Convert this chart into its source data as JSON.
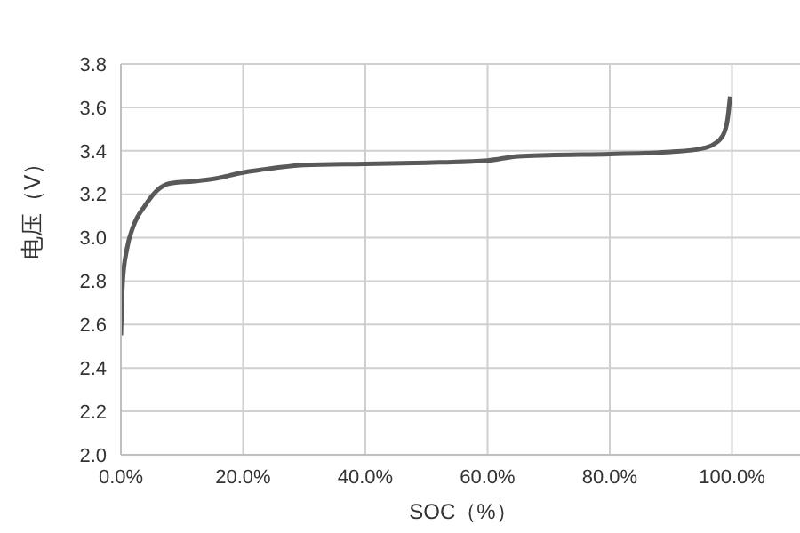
{
  "chart_data": {
    "type": "line",
    "xlabel": "SOC（%）",
    "ylabel": "电压（V）",
    "x": [
      0,
      0.3,
      1,
      2,
      4,
      6,
      8,
      12,
      15,
      20,
      25,
      30,
      40,
      50,
      60,
      65,
      70,
      80,
      90,
      95,
      97,
      98.5,
      99.3,
      99.7
    ],
    "series": [
      {
        "color": "#595959",
        "values": [
          2.55,
          2.8,
          2.95,
          3.05,
          3.15,
          3.22,
          3.25,
          3.26,
          3.27,
          3.3,
          3.32,
          3.335,
          3.34,
          3.345,
          3.355,
          3.375,
          3.38,
          3.385,
          3.395,
          3.41,
          3.43,
          3.47,
          3.55,
          3.65
        ]
      }
    ],
    "xlim": [
      0,
      112
    ],
    "xticks": [
      {
        "value": 0,
        "label": "0.0%"
      },
      {
        "value": 20,
        "label": "20.0%"
      },
      {
        "value": 40,
        "label": "40.0%"
      },
      {
        "value": 60,
        "label": "60.0%"
      },
      {
        "value": 80,
        "label": "80.0%"
      },
      {
        "value": 100,
        "label": "100.0%"
      }
    ],
    "ylim": [
      2.0,
      3.8
    ],
    "yticks": [
      {
        "value": 2.0,
        "label": "2.0"
      },
      {
        "value": 2.2,
        "label": "2.2"
      },
      {
        "value": 2.4,
        "label": "2.4"
      },
      {
        "value": 2.6,
        "label": "2.6"
      },
      {
        "value": 2.8,
        "label": "2.8"
      },
      {
        "value": 3.0,
        "label": "3.0"
      },
      {
        "value": 3.2,
        "label": "3.2"
      },
      {
        "value": 3.4,
        "label": "3.4"
      },
      {
        "value": 3.6,
        "label": "3.6"
      },
      {
        "value": 3.8,
        "label": "3.8"
      }
    ],
    "grid": true,
    "marker": "none",
    "line_style": "solid"
  }
}
